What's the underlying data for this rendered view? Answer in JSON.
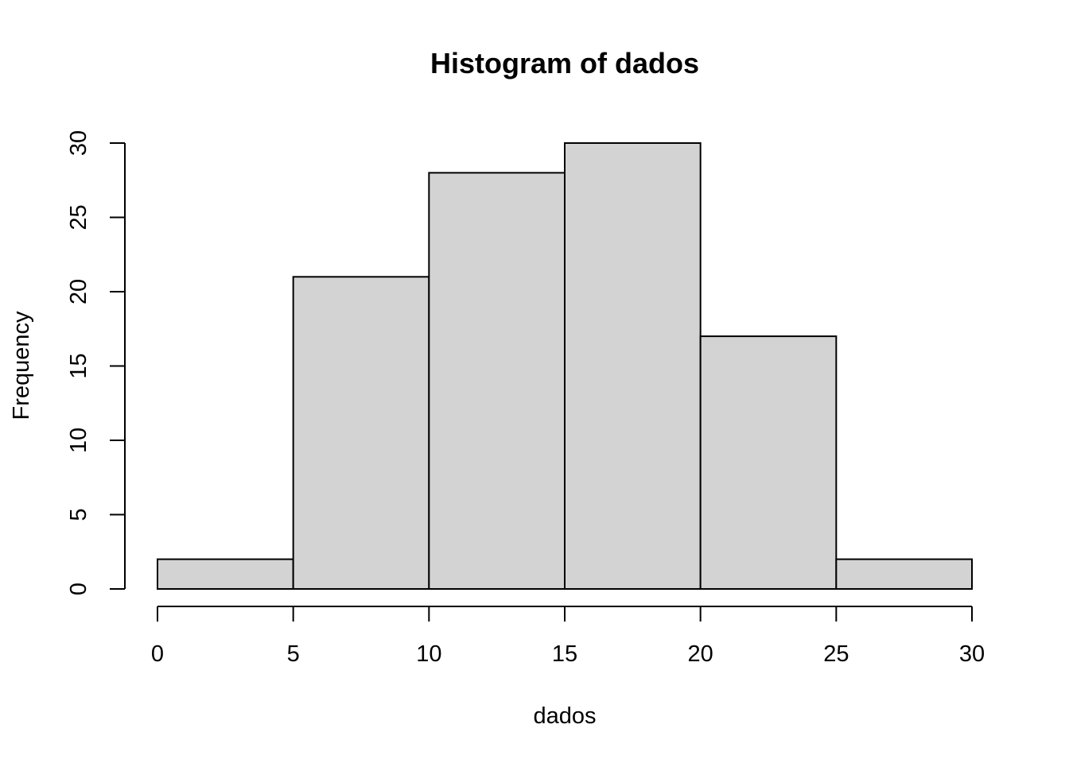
{
  "chart_data": {
    "type": "bar",
    "title": "Histogram of dados",
    "xlabel": "dados",
    "ylabel": "Frequency",
    "bins": [
      {
        "from": 0,
        "to": 5,
        "count": 2
      },
      {
        "from": 5,
        "to": 10,
        "count": 21
      },
      {
        "from": 10,
        "to": 15,
        "count": 28
      },
      {
        "from": 15,
        "to": 20,
        "count": 30
      },
      {
        "from": 20,
        "to": 25,
        "count": 17
      },
      {
        "from": 25,
        "to": 30,
        "count": 2
      }
    ],
    "xlim": [
      0,
      30
    ],
    "ylim": [
      0,
      30
    ],
    "xticks": [
      "0",
      "5",
      "10",
      "15",
      "20",
      "25",
      "30"
    ],
    "yticks": [
      "0",
      "5",
      "10",
      "15",
      "20",
      "25",
      "30"
    ],
    "grid": false,
    "colors": {
      "bar_fill": "#d3d3d3",
      "bar_stroke": "#000000"
    }
  }
}
